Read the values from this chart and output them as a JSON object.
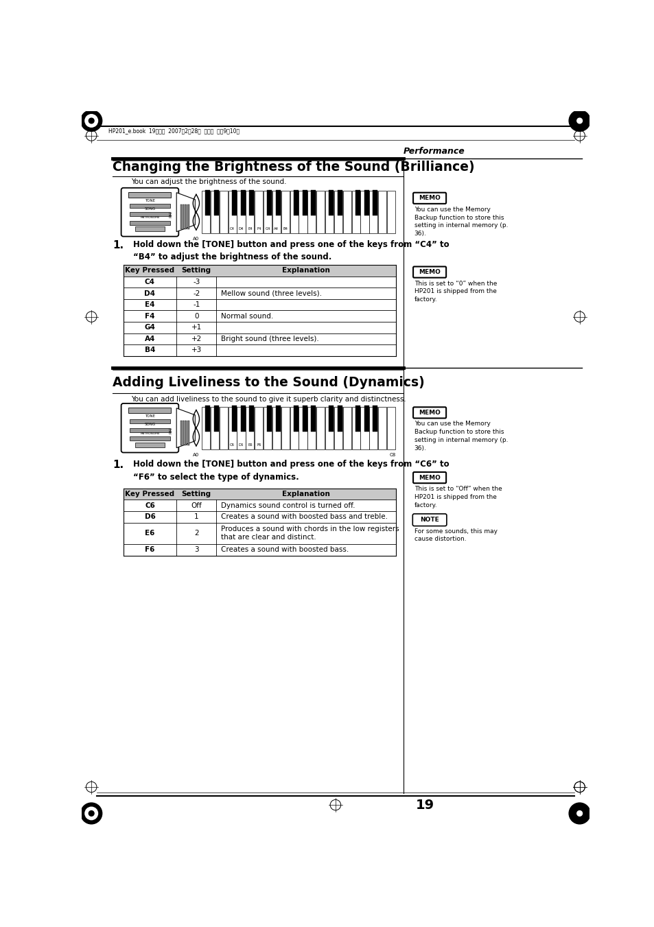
{
  "bg_color": "#ffffff",
  "page_width": 9.54,
  "page_height": 13.51,
  "header_text": "HP201_e.book  19ページ  2007年2月28日  水曜日  午前9時10分",
  "performance_label": "Performance",
  "section1_title": "Changing the Brightness of the Sound (Brilliance)",
  "section1_intro": "You can adjust the brightness of the sound.",
  "step1_text1": "Hold down the [TONE] button and press one of the keys from “C4” to",
  "step1_text2": "“B4” to adjust the brightness of the sound.",
  "table1_headers": [
    "Key Pressed",
    "Setting",
    "Explanation"
  ],
  "table1_rows": [
    [
      "C4",
      "-3",
      ""
    ],
    [
      "D4",
      "-2",
      "Mellow sound (three levels)."
    ],
    [
      "E4",
      "-1",
      ""
    ],
    [
      "F4",
      "0",
      "Normal sound."
    ],
    [
      "G4",
      "+1",
      ""
    ],
    [
      "A4",
      "+2",
      "Bright sound (three levels)."
    ],
    [
      "B4",
      "+3",
      ""
    ]
  ],
  "memo1_title": "MEMO",
  "memo1_text": "You can use the Memory\nBackup function to store this\nsetting in internal memory (p.\n36).",
  "memo2_title": "MEMO",
  "memo2_text": "This is set to “0” when the\nHP201 is shipped from the\nfactory.",
  "section2_title": "Adding Liveliness to the Sound (Dynamics)",
  "section2_intro": "You can add liveliness to the sound to give it superb clarity and distinctness.",
  "step2_text1": "Hold down the [TONE] button and press one of the keys from “C6” to",
  "step2_text2": "“F6” to select the type of dynamics.",
  "table2_headers": [
    "Key Pressed",
    "Setting",
    "Explanation"
  ],
  "table2_rows": [
    [
      "C6",
      "Off",
      "Dynamics sound control is turned off."
    ],
    [
      "D6",
      "1",
      "Creates a sound with boosted bass and treble."
    ],
    [
      "E6",
      "2",
      "Produces a sound with chords in the low registers\nthat are clear and distinct."
    ],
    [
      "F6",
      "3",
      "Creates a sound with boosted bass."
    ]
  ],
  "memo3_title": "MEMO",
  "memo3_text": "You can use the Memory\nBackup function to store this\nsetting in internal memory (p.\n36).",
  "memo4_title": "MEMO",
  "memo4_text": "This is set to “Off” when the\nHP201 is shipped from the\nfactory.",
  "note_title": "NOTE",
  "note_text": "For some sounds, this may\ncause distortion.",
  "page_number": "19",
  "table_header_bg": "#c8c8c8",
  "sep_line_color": "#555555"
}
